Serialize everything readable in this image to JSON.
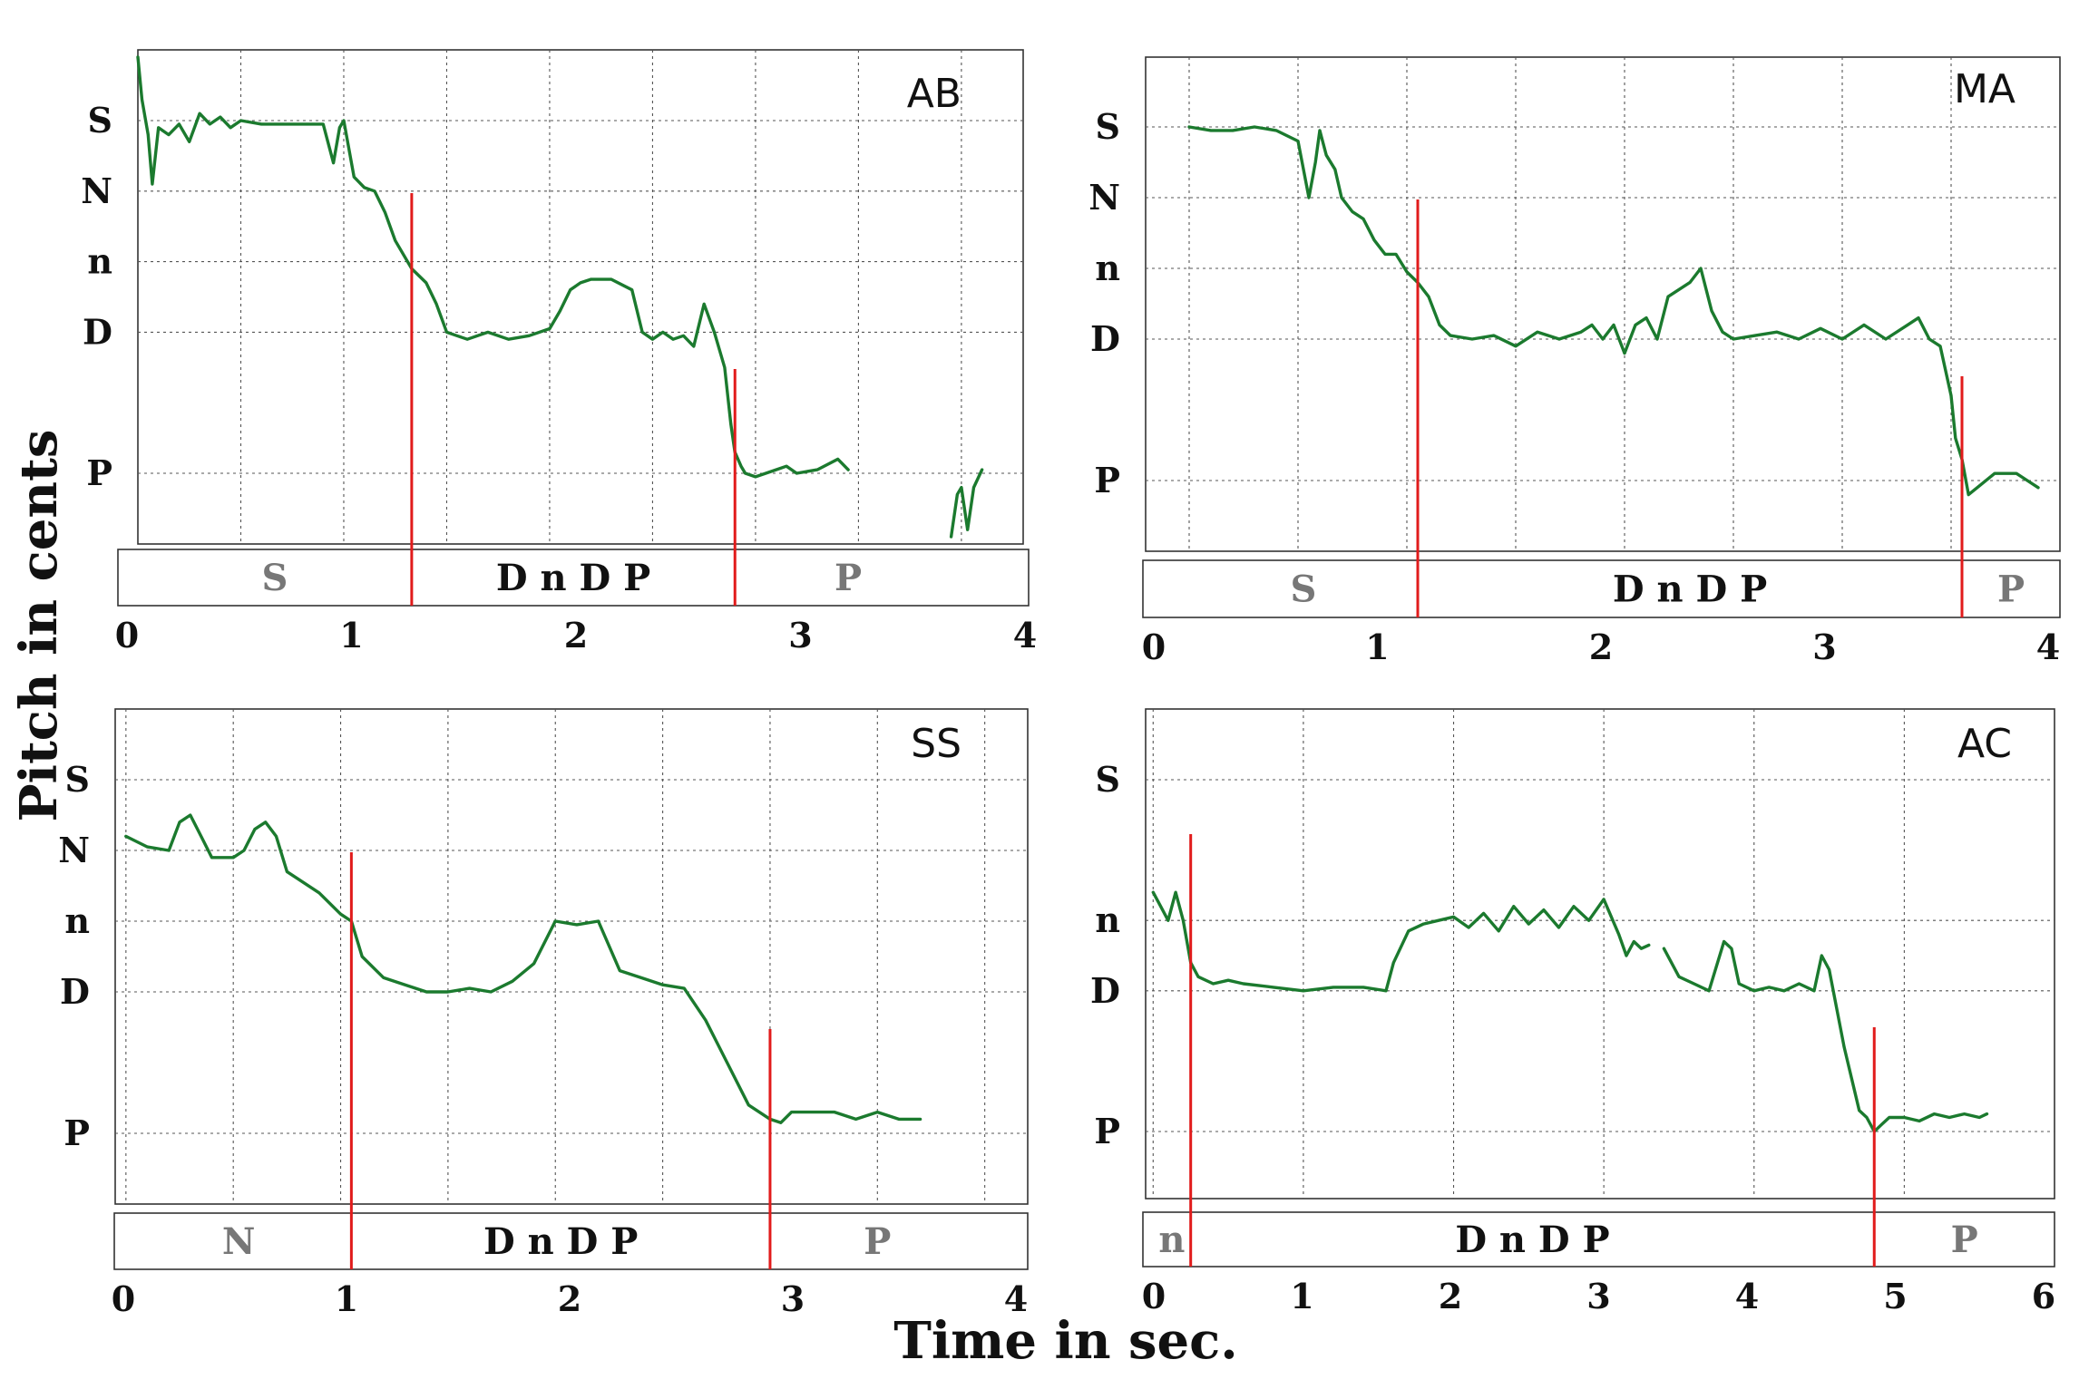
{
  "figure": {
    "y_axis_title": "Pitch in cents",
    "x_axis_title": "Time in sec."
  },
  "colors": {
    "trace": "#1b7a2e",
    "marker": "#e11b1b",
    "dark_label": "#111111",
    "gray_label": "#777777"
  },
  "chart_data": [
    {
      "type": "line",
      "label": "AB",
      "xlim": [
        0,
        4
      ],
      "x_ticks": [
        "0",
        "1",
        "2",
        "3",
        "4"
      ],
      "y_tick_labels": [
        "S",
        "N",
        "n",
        "D",
        "P"
      ],
      "y_tick_values": [
        0,
        -100,
        -200,
        -300,
        -500
      ],
      "grid": true,
      "segments": [
        {
          "label": "S",
          "start": 0,
          "end": 1.33,
          "muted": true
        },
        {
          "label": "D n D P",
          "start": 1.33,
          "end": 2.9,
          "muted": false
        },
        {
          "label": "P",
          "start": 2.9,
          "end": 4,
          "muted": true
        }
      ],
      "markers": [
        1.33,
        2.9
      ],
      "series": [
        {
          "x": [
            0.0,
            0.02,
            0.05,
            0.07,
            0.1,
            0.15,
            0.2,
            0.25,
            0.3,
            0.35,
            0.4,
            0.45,
            0.5,
            0.6,
            0.7,
            0.8,
            0.9,
            0.95,
            0.98,
            1.0,
            1.05,
            1.1,
            1.15,
            1.2,
            1.25,
            1.33,
            1.4,
            1.45,
            1.5,
            1.55,
            1.6,
            1.7,
            1.8,
            1.9,
            2.0,
            2.05,
            2.1,
            2.15,
            2.2,
            2.3,
            2.4,
            2.45,
            2.5,
            2.55,
            2.6,
            2.65,
            2.7,
            2.75,
            2.8,
            2.85,
            2.88,
            2.9,
            2.93,
            2.95,
            3.0,
            3.05,
            3.1,
            3.15,
            3.2,
            3.3,
            3.4,
            3.45
          ],
          "y": [
            90,
            30,
            -20,
            -90,
            -10,
            -20,
            -5,
            -30,
            10,
            -5,
            5,
            -10,
            0,
            -5,
            -5,
            -5,
            -5,
            -60,
            -10,
            0,
            -80,
            -95,
            -100,
            -130,
            -170,
            -210,
            -230,
            -260,
            -300,
            -305,
            -310,
            -300,
            -310,
            -305,
            -295,
            -270,
            -240,
            -230,
            -225,
            -225,
            -240,
            -300,
            -310,
            -300,
            -310,
            -305,
            -320,
            -260,
            -300,
            -350,
            -430,
            -470,
            -490,
            -500,
            -505,
            -500,
            -495,
            -490,
            -500,
            -495,
            -480,
            -495
          ]
        },
        {
          "x": [
            3.95,
            3.98,
            4.0,
            4.03,
            4.06,
            4.1
          ],
          "y": [
            -590,
            -530,
            -520,
            -580,
            -520,
            -495
          ]
        }
      ]
    },
    {
      "type": "line",
      "label": "MA",
      "xlim": [
        0,
        4
      ],
      "x_ticks": [
        "0",
        "1",
        "2",
        "3",
        "4"
      ],
      "y_tick_labels": [
        "S",
        "N",
        "n",
        "D",
        "P"
      ],
      "y_tick_values": [
        0,
        -100,
        -200,
        -300,
        -500
      ],
      "grid": true,
      "segments": [
        {
          "label": "S",
          "start": 0,
          "end": 1.05,
          "muted": true
        },
        {
          "label": "D n D P",
          "start": 1.05,
          "end": 3.55,
          "muted": false
        },
        {
          "label": "P",
          "start": 3.55,
          "end": 4,
          "muted": true
        }
      ],
      "markers": [
        1.05,
        3.55
      ],
      "series": [
        {
          "x": [
            0.0,
            0.1,
            0.2,
            0.3,
            0.4,
            0.5,
            0.55,
            0.58,
            0.6,
            0.63,
            0.67,
            0.7,
            0.75,
            0.8,
            0.85,
            0.9,
            0.95,
            1.0,
            1.05,
            1.1,
            1.15,
            1.2,
            1.3,
            1.4,
            1.5,
            1.6,
            1.7,
            1.8,
            1.85,
            1.9,
            1.95,
            2.0,
            2.05,
            2.1,
            2.15,
            2.2,
            2.3,
            2.35,
            2.4,
            2.45,
            2.5,
            2.6,
            2.7,
            2.8,
            2.9,
            3.0,
            3.1,
            3.2,
            3.3,
            3.35,
            3.4,
            3.45,
            3.5,
            3.52,
            3.55,
            3.58,
            3.62,
            3.7,
            3.8,
            3.85,
            3.9
          ],
          "y": [
            0,
            -5,
            -5,
            0,
            -5,
            -20,
            -100,
            -50,
            -5,
            -40,
            -60,
            -100,
            -120,
            -130,
            -160,
            -180,
            -180,
            -205,
            -220,
            -240,
            -280,
            -295,
            -300,
            -295,
            -310,
            -290,
            -300,
            -290,
            -280,
            -300,
            -280,
            -320,
            -280,
            -270,
            -300,
            -240,
            -220,
            -200,
            -260,
            -290,
            -300,
            -295,
            -290,
            -300,
            -285,
            -300,
            -280,
            -300,
            -280,
            -270,
            -300,
            -310,
            -380,
            -440,
            -470,
            -520,
            -510,
            -490,
            -490,
            -500,
            -510
          ]
        }
      ]
    },
    {
      "type": "line",
      "label": "SS",
      "xlim": [
        0,
        4
      ],
      "x_ticks": [
        "0",
        "1",
        "2",
        "3",
        "4"
      ],
      "y_tick_labels": [
        "S",
        "N",
        "n",
        "D",
        "P"
      ],
      "y_tick_values": [
        0,
        -100,
        -200,
        -300,
        -500
      ],
      "grid": true,
      "segments": [
        {
          "label": "N",
          "start": 0,
          "end": 1.05,
          "muted": true
        },
        {
          "label": "D n D P",
          "start": 1.05,
          "end": 3.0,
          "muted": false
        },
        {
          "label": "P",
          "start": 3.0,
          "end": 4,
          "muted": true
        }
      ],
      "markers": [
        1.05,
        3.0
      ],
      "series": [
        {
          "x": [
            0.0,
            0.1,
            0.2,
            0.25,
            0.3,
            0.35,
            0.4,
            0.5,
            0.55,
            0.6,
            0.65,
            0.7,
            0.75,
            0.8,
            0.9,
            1.0,
            1.05,
            1.1,
            1.2,
            1.3,
            1.4,
            1.5,
            1.6,
            1.7,
            1.8,
            1.9,
            2.0,
            2.1,
            2.2,
            2.3,
            2.4,
            2.5,
            2.6,
            2.7,
            2.8,
            2.9,
            3.0,
            3.05,
            3.1,
            3.2,
            3.3,
            3.4,
            3.5,
            3.6,
            3.7
          ],
          "y": [
            -80,
            -95,
            -100,
            -60,
            -50,
            -80,
            -110,
            -110,
            -100,
            -70,
            -60,
            -80,
            -130,
            -140,
            -160,
            -190,
            -200,
            -250,
            -280,
            -290,
            -300,
            -300,
            -295,
            -300,
            -285,
            -260,
            -200,
            -205,
            -200,
            -270,
            -280,
            -290,
            -295,
            -340,
            -400,
            -460,
            -480,
            -485,
            -470,
            -470,
            -470,
            -480,
            -470,
            -480,
            -480
          ]
        }
      ]
    },
    {
      "type": "line",
      "label": "AC",
      "xlim": [
        0,
        6
      ],
      "x_ticks": [
        "0",
        "1",
        "2",
        "3",
        "4",
        "5",
        "6"
      ],
      "y_tick_labels": [
        "S",
        "n",
        "D",
        "P"
      ],
      "y_tick_values": [
        0,
        -200,
        -300,
        -500
      ],
      "grid": true,
      "segments": [
        {
          "label": "n",
          "start": 0,
          "end": 0.25,
          "muted": true
        },
        {
          "label": "D n D P",
          "start": 0.25,
          "end": 4.8,
          "muted": false
        },
        {
          "label": "P",
          "start": 4.8,
          "end": 6,
          "muted": true
        }
      ],
      "markers": [
        0.25,
        4.8
      ],
      "series": [
        {
          "x": [
            0.0,
            0.05,
            0.1,
            0.15,
            0.2,
            0.25,
            0.3,
            0.4,
            0.5,
            0.6,
            0.8,
            1.0,
            1.2,
            1.4,
            1.55,
            1.6,
            1.7,
            1.8,
            1.9,
            2.0,
            2.1,
            2.2,
            2.3,
            2.4,
            2.5,
            2.6,
            2.7,
            2.8,
            2.9,
            3.0,
            3.1,
            3.15,
            3.2,
            3.25,
            3.3
          ],
          "y": [
            -160,
            -180,
            -200,
            -160,
            -200,
            -260,
            -280,
            -290,
            -285,
            -290,
            -295,
            -300,
            -295,
            -295,
            -300,
            -260,
            -215,
            -205,
            -200,
            -195,
            -210,
            -190,
            -215,
            -180,
            -205,
            -185,
            -210,
            -180,
            -200,
            -170,
            -220,
            -250,
            -230,
            -240,
            -235
          ]
        },
        {
          "x": [
            3.4,
            3.5,
            3.6,
            3.7,
            3.8,
            3.85,
            3.9,
            4.0,
            4.1,
            4.2,
            4.3,
            4.4,
            4.45,
            4.5,
            4.6,
            4.7,
            4.75,
            4.8,
            4.85,
            4.9,
            5.0,
            5.1,
            5.2,
            5.3,
            5.4,
            5.5,
            5.55
          ],
          "y": [
            -240,
            -280,
            -290,
            -300,
            -230,
            -240,
            -290,
            -300,
            -295,
            -300,
            -290,
            -300,
            -250,
            -270,
            -380,
            -470,
            -480,
            -500,
            -490,
            -480,
            -480,
            -485,
            -475,
            -480,
            -475,
            -480,
            -475
          ]
        }
      ]
    }
  ]
}
